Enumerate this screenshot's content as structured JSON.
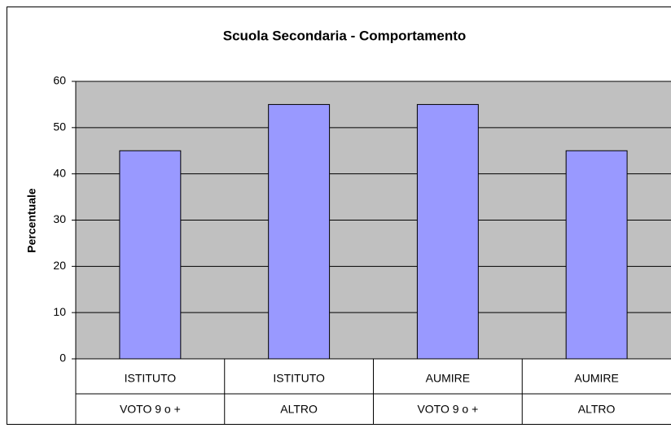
{
  "chart_data": {
    "type": "bar",
    "title": "Scuola Secondaria - Comportamento",
    "y_label": "Percentuale",
    "categories": [
      [
        "ISTITUTO",
        "VOTO 9 o +"
      ],
      [
        "ISTITUTO",
        "ALTRO"
      ],
      [
        "AUMIRE",
        "VOTO 9 o +"
      ],
      [
        "AUMIRE",
        "ALTRO"
      ]
    ],
    "values": [
      45,
      55,
      55,
      45
    ],
    "color": "#9999ff",
    "ylim": [
      0,
      60
    ],
    "yticks": [
      0,
      10,
      20,
      30,
      40,
      50,
      60
    ],
    "grid": true
  }
}
